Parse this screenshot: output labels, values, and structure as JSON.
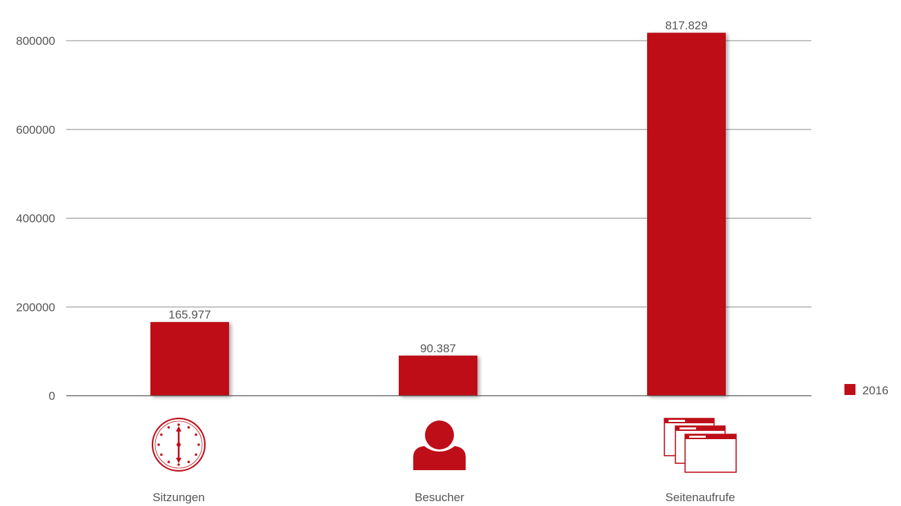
{
  "chart_data": {
    "type": "bar",
    "categories": [
      "Sitzungen",
      "Besucher",
      "Seitenaufrufe"
    ],
    "category_icons": [
      "clock-icon",
      "person-icon",
      "browser-windows-icon"
    ],
    "series": [
      {
        "name": "2016",
        "values": [
          165977,
          90387,
          817829
        ],
        "value_labels": [
          "165.977",
          "90.387",
          "817.829"
        ],
        "color": "#be0f19"
      }
    ],
    "ylim": [
      0,
      800000
    ],
    "yticks": [
      "0",
      "200000",
      "400000",
      "600000",
      "800000"
    ],
    "ytick_values": [
      0,
      200000,
      400000,
      600000,
      800000
    ],
    "grid": true,
    "legend": "right"
  }
}
